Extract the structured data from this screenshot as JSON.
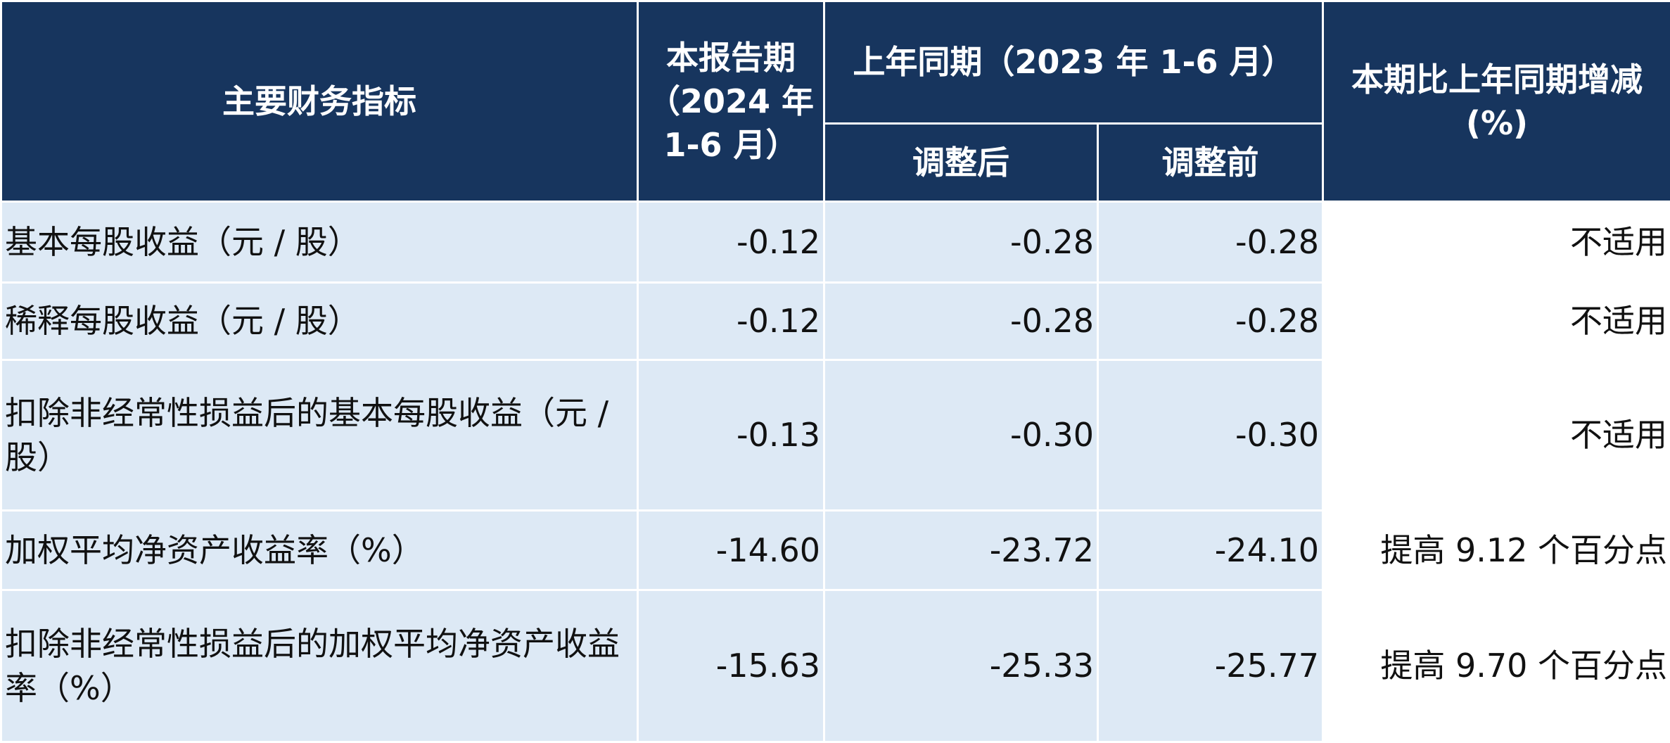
{
  "table": {
    "header": {
      "indicator": "主要财务指标",
      "current": "本报告期（2024 年 1-6 月）",
      "prior": "上年同期（2023 年 1-6 月）",
      "adjusted": "调整后",
      "unadjusted": "调整前",
      "change": "本期比上年同期增减(%)"
    },
    "rows": [
      [
        "基本每股收益（元 / 股）",
        "-0.12",
        "-0.28",
        "-0.28",
        "不适用"
      ],
      [
        "稀释每股收益（元 / 股）",
        "-0.12",
        "-0.28",
        "-0.28",
        "不适用"
      ],
      [
        "扣除非经常性损益后的基本每股收益（元 / 股）",
        "-0.13",
        "-0.30",
        "-0.30",
        "不适用"
      ],
      [
        "加权平均净资产收益率（%）",
        "-14.60",
        "-23.72",
        "-24.10",
        "提高 9.12 个百分点"
      ],
      [
        "扣除非经常性损益后的加权平均净资产收益率（%）",
        "-15.63",
        "-25.33",
        "-25.77",
        "提高 9.70 个百分点"
      ]
    ]
  }
}
